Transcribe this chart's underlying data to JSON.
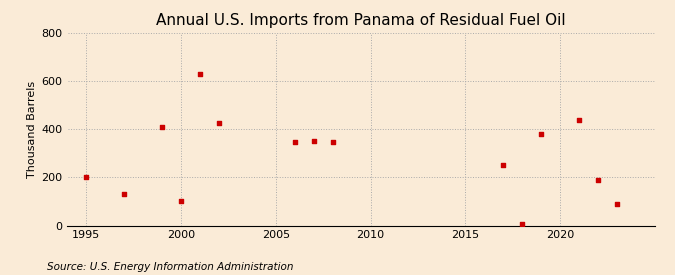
{
  "title": "Annual U.S. Imports from Panama of Residual Fuel Oil",
  "ylabel": "Thousand Barrels",
  "source": "Source: U.S. Energy Information Administration",
  "years": [
    1995,
    1997,
    1999,
    2000,
    2001,
    2002,
    2006,
    2007,
    2008,
    2017,
    2018,
    2019,
    2021,
    2022,
    2023
  ],
  "values": [
    200,
    130,
    410,
    100,
    630,
    425,
    345,
    350,
    345,
    250,
    5,
    380,
    440,
    190,
    90
  ],
  "marker_color": "#cc0000",
  "background_color": "#faebd7",
  "xlim": [
    1994,
    2025
  ],
  "ylim": [
    0,
    800
  ],
  "yticks": [
    0,
    200,
    400,
    600,
    800
  ],
  "xticks": [
    1995,
    2000,
    2005,
    2010,
    2015,
    2020
  ],
  "grid_color": "#aaaaaa",
  "title_fontsize": 11,
  "label_fontsize": 8,
  "source_fontsize": 7.5
}
